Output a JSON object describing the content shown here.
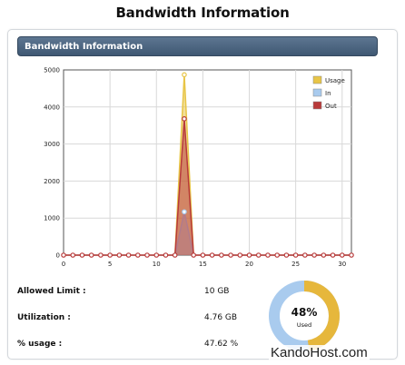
{
  "page_title": "Bandwidth Information",
  "panel": {
    "header_title": "Bandwidth Information"
  },
  "chart_data": {
    "type": "area",
    "x": [
      0,
      1,
      2,
      3,
      4,
      5,
      6,
      7,
      8,
      9,
      10,
      11,
      12,
      13,
      14,
      15,
      16,
      17,
      18,
      19,
      20,
      21,
      22,
      23,
      24,
      25,
      26,
      27,
      28,
      29,
      30,
      31
    ],
    "xlim": [
      0,
      31
    ],
    "ylim": [
      0,
      5000
    ],
    "x_ticks": [
      0,
      5,
      10,
      15,
      20,
      25,
      30
    ],
    "y_ticks": [
      0,
      1000,
      2000,
      3000,
      4000,
      5000
    ],
    "grid": true,
    "legend_placement": "top-right",
    "series": [
      {
        "name": "Usage",
        "color": "#e8c547",
        "values": [
          0,
          0,
          0,
          0,
          0,
          0,
          0,
          0,
          0,
          0,
          0,
          0,
          0,
          4870,
          0,
          0,
          0,
          0,
          0,
          0,
          0,
          0,
          0,
          0,
          0,
          0,
          0,
          0,
          0,
          0,
          0,
          0
        ]
      },
      {
        "name": "In",
        "color": "#a9cbee",
        "values": [
          0,
          0,
          0,
          0,
          0,
          0,
          0,
          0,
          0,
          0,
          0,
          0,
          0,
          1170,
          0,
          0,
          0,
          0,
          0,
          0,
          0,
          0,
          0,
          0,
          0,
          0,
          0,
          0,
          0,
          0,
          0,
          0
        ]
      },
      {
        "name": "Out",
        "color": "#b83a3a",
        "values": [
          0,
          0,
          0,
          0,
          0,
          0,
          0,
          0,
          0,
          0,
          0,
          0,
          0,
          3680,
          0,
          0,
          0,
          0,
          0,
          0,
          0,
          0,
          0,
          0,
          0,
          0,
          0,
          0,
          0,
          0,
          0,
          0
        ]
      }
    ]
  },
  "stats": {
    "allowed_limit": {
      "label": "Allowed Limit :",
      "value": "10 GB"
    },
    "utilization": {
      "label": "Utilization :",
      "value": "4.76 GB"
    },
    "usage_percent": {
      "label": "% usage :",
      "value": "47.62 %"
    }
  },
  "donut": {
    "percent_label": "48%",
    "caption": "Used",
    "used_fraction": 0.4762,
    "used_color": "#e6b73c",
    "free_color": "#a9cbee"
  },
  "watermark": "KandoHost.com"
}
